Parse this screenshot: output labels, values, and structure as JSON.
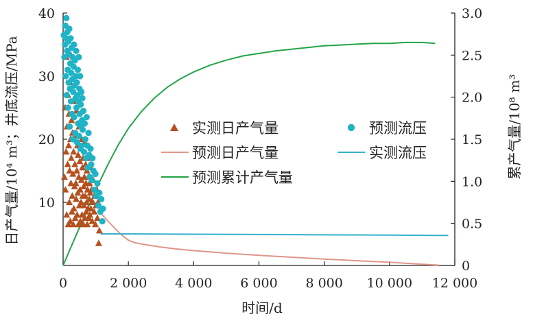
{
  "chart_data": {
    "type": "scatter",
    "xlabel": "时间/d",
    "ylabel_left": "日产气量/10⁴ m³；井底流压/MPa",
    "ylabel_right": "累产气量/10⁸ m³",
    "xlim": [
      0,
      12000
    ],
    "ylim_left": [
      0,
      40
    ],
    "ylim_right": [
      0,
      3.0
    ],
    "x_ticks": [
      0,
      2000,
      4000,
      6000,
      8000,
      10000,
      12000
    ],
    "x_tick_labels": [
      "0",
      "2 000",
      "4 000",
      "6 000",
      "8 000",
      "10 000",
      "12 000"
    ],
    "y_left_ticks": [
      10,
      20,
      30,
      40
    ],
    "y_left_tick_labels": [
      "10",
      "20",
      "30",
      "40"
    ],
    "y_right_ticks": [
      0,
      0.5,
      1.0,
      1.5,
      2.0,
      2.5,
      3.0
    ],
    "y_right_tick_labels": [
      "0",
      "0.5",
      "1.0",
      "1.5",
      "2.0",
      "2.5",
      "3.0"
    ],
    "grid": false,
    "legend_position": "center",
    "colors": {
      "measured_rate": "#b5501f",
      "predicted_pressure": "#1fb3c6",
      "predicted_rate": "#e0968a",
      "measured_pressure": "#34b0cc",
      "predicted_cumulative": "#22a447"
    },
    "series": [
      {
        "name": "实测日产气量",
        "kind": "scatter-triangle",
        "axis": "left",
        "x": [
          40,
          60,
          70,
          90,
          100,
          110,
          120,
          140,
          150,
          160,
          170,
          180,
          190,
          200,
          210,
          220,
          230,
          240,
          250,
          260,
          270,
          280,
          290,
          300,
          310,
          320,
          330,
          340,
          350,
          360,
          370,
          380,
          390,
          400,
          410,
          420,
          430,
          440,
          450,
          460,
          470,
          480,
          490,
          500,
          510,
          520,
          530,
          540,
          550,
          560,
          570,
          580,
          590,
          600,
          610,
          620,
          630,
          640,
          650,
          660,
          670,
          680,
          690,
          700,
          710,
          720,
          730,
          740,
          750,
          760,
          770,
          780,
          790,
          800,
          810,
          820,
          830,
          840,
          850,
          870,
          890,
          910,
          930,
          950,
          970,
          990,
          1010,
          1030,
          1050,
          1070,
          1090,
          1110
        ],
        "y": [
          14,
          25,
          12,
          18,
          33,
          8,
          22,
          16,
          27,
          6.5,
          19,
          24,
          10,
          15,
          29,
          7,
          20,
          13,
          17,
          23,
          8.5,
          11,
          21,
          14.5,
          6.5,
          18,
          9,
          26,
          12.5,
          16,
          7.5,
          20.5,
          13,
          10.5,
          24.5,
          15,
          8,
          19,
          11.5,
          17.5,
          6.5,
          14,
          22,
          9.5,
          16.5,
          12,
          7,
          18.5,
          10,
          13.5,
          20,
          8,
          15.5,
          11,
          17,
          6.5,
          12.5,
          9.5,
          14,
          19.5,
          7.5,
          11,
          16,
          13,
          8.5,
          10,
          15,
          6.5,
          12,
          9,
          14,
          17,
          7.5,
          10.5,
          13,
          8,
          11.5,
          15.5,
          9,
          12,
          7,
          10,
          13.5,
          8.5,
          11,
          6.5,
          9.5,
          12,
          7.5,
          10,
          3.5,
          5.5
        ]
      },
      {
        "name": "预测流压",
        "kind": "scatter-dot",
        "axis": "left",
        "x": [
          20,
          40,
          60,
          70,
          80,
          90,
          100,
          110,
          120,
          130,
          140,
          150,
          160,
          170,
          180,
          190,
          200,
          210,
          220,
          230,
          240,
          250,
          260,
          270,
          280,
          290,
          300,
          310,
          320,
          330,
          340,
          350,
          360,
          370,
          380,
          390,
          400,
          410,
          420,
          430,
          440,
          450,
          460,
          470,
          480,
          490,
          500,
          510,
          520,
          530,
          540,
          550,
          560,
          570,
          580,
          590,
          600,
          620,
          640,
          660,
          680,
          700,
          720,
          740,
          760,
          780,
          800,
          820,
          840,
          860,
          880,
          900,
          930,
          960,
          990,
          1020,
          1050,
          1080,
          1110,
          1140,
          1170,
          1200,
          1220
        ],
        "y": [
          36.5,
          33,
          35,
          38,
          30,
          36,
          39.2,
          27,
          34,
          37,
          31,
          25,
          35.5,
          29,
          33.5,
          37.5,
          22,
          28,
          32,
          36,
          26,
          30.5,
          34.5,
          24,
          29.5,
          33,
          20,
          27.5,
          31.5,
          35,
          23.5,
          28.5,
          32.5,
          21,
          26.5,
          30,
          34,
          25,
          29,
          19.5,
          27,
          31,
          22.5,
          26,
          33,
          20.5,
          28,
          24,
          30,
          18.5,
          25.5,
          22,
          27.5,
          19,
          23,
          26.5,
          21.5,
          24.5,
          18,
          22.5,
          20,
          17,
          23.5,
          19,
          15.5,
          21,
          17.5,
          14,
          18.5,
          16,
          13.5,
          17,
          15,
          12,
          14.5,
          11,
          13,
          9.5,
          11.5,
          8.5,
          10.5,
          7,
          9
        ]
      },
      {
        "name": "预测日产气量",
        "kind": "line",
        "axis": "left",
        "x": [
          1050,
          1200,
          1400,
          1600,
          1800,
          2000,
          2200,
          2500,
          3000,
          3500,
          4000,
          5000,
          6000,
          7000,
          8000,
          9000,
          10000,
          11000,
          11500
        ],
        "y": [
          9.5,
          8,
          6.9,
          5.8,
          4.8,
          4.0,
          3.6,
          3.3,
          2.9,
          2.6,
          2.35,
          1.95,
          1.6,
          1.3,
          1.0,
          0.75,
          0.5,
          0.2,
          0.05
        ]
      },
      {
        "name": "实测流压",
        "kind": "line",
        "axis": "left",
        "x": [
          1150,
          2000,
          4000,
          6000,
          8000,
          10000,
          11800
        ],
        "y": [
          5.0,
          5.0,
          4.95,
          4.9,
          4.85,
          4.8,
          4.75
        ]
      },
      {
        "name": "预测累计产气量",
        "kind": "line",
        "axis": "right",
        "x": [
          0,
          200,
          500,
          800,
          1100,
          1400,
          1700,
          2000,
          2400,
          2800,
          3200,
          3600,
          4000,
          4500,
          5000,
          5500,
          6000,
          6500,
          7000,
          7500,
          8000,
          8500,
          9000,
          9500,
          10000,
          10500,
          11000,
          11400
        ],
        "y": [
          0,
          0.18,
          0.45,
          0.72,
          0.98,
          1.22,
          1.44,
          1.63,
          1.83,
          1.99,
          2.12,
          2.22,
          2.3,
          2.38,
          2.44,
          2.49,
          2.52,
          2.55,
          2.57,
          2.59,
          2.61,
          2.62,
          2.63,
          2.64,
          2.64,
          2.65,
          2.65,
          2.64
        ]
      }
    ]
  }
}
